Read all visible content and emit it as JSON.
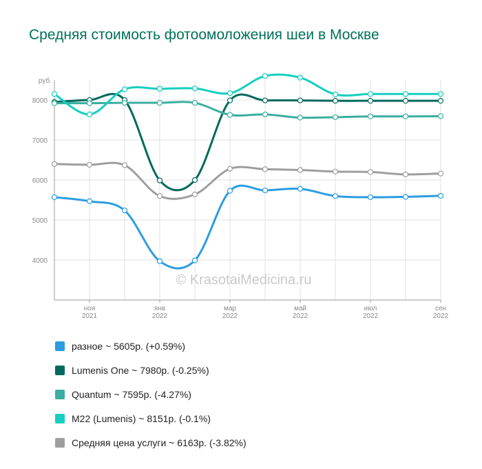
{
  "title": "Средняя стоимость фотоомоложения шеи в Москве",
  "watermark": "© KrasotaiMedicina.ru",
  "chart_data": {
    "type": "line",
    "title": "Средняя стоимость фотоомоложения шеи в Москве",
    "ylabel": "руб.",
    "ylim": [
      3000,
      8500
    ],
    "y_ticks": [
      4000,
      5000,
      6000,
      7000,
      8000
    ],
    "grid": true,
    "legend_position": "bottom",
    "x": [
      "2021-10",
      "2021-11",
      "2021-12",
      "2022-01",
      "2022-02",
      "2022-03",
      "2022-04",
      "2022-05",
      "2022-06",
      "2022-07",
      "2022-08",
      "2022-09"
    ],
    "x_tick_labels": [
      {
        "month": "ноя",
        "year": "2021",
        "at": "2021-11"
      },
      {
        "month": "янв",
        "year": "2022",
        "at": "2022-01"
      },
      {
        "month": "мар",
        "year": "2022",
        "at": "2022-03"
      },
      {
        "month": "май",
        "year": "2022",
        "at": "2022-05"
      },
      {
        "month": "июл",
        "year": "2022",
        "at": "2022-07"
      },
      {
        "month": "сен",
        "year": "2022",
        "at": "2022-09"
      }
    ],
    "series": [
      {
        "name": "разное",
        "legend": "разное ~ 5605р. (+0.59%)",
        "color": "#2b9de0",
        "values": [
          5570,
          5470,
          5240,
          3970,
          3990,
          5730,
          5740,
          5780,
          5600,
          5570,
          5580,
          5605
        ]
      },
      {
        "name": "Lumenis One",
        "legend": "Lumenis One ~ 7980р. (-0.25%)",
        "color": "#00695c",
        "values": [
          7950,
          8000,
          8000,
          5990,
          6000,
          7990,
          7990,
          7990,
          7980,
          7980,
          7980,
          7980
        ]
      },
      {
        "name": "Quantum",
        "legend": "Quantum ~ 7595р. (-4.27%)",
        "color": "#3aaea0",
        "values": [
          7920,
          7920,
          7930,
          7930,
          7930,
          7630,
          7640,
          7560,
          7570,
          7590,
          7590,
          7595
        ]
      },
      {
        "name": "M22 (Lumenis)",
        "legend": "M22 (Lumenis) ~ 8151р. (-0.1%)",
        "color": "#14cfc0",
        "values": [
          8150,
          7640,
          8270,
          8280,
          8290,
          8170,
          8600,
          8560,
          8140,
          8150,
          8150,
          8151
        ]
      },
      {
        "name": "Средняя цена услуги",
        "legend": "Средняя цена услуги ~ 6163р. (-3.82%)",
        "color": "#9e9e9e",
        "values": [
          6400,
          6380,
          6370,
          5600,
          5640,
          6280,
          6270,
          6250,
          6210,
          6200,
          6140,
          6163
        ]
      }
    ]
  }
}
